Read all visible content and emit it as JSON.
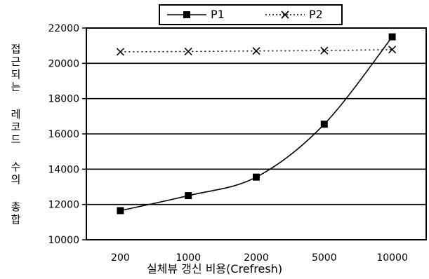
{
  "chart_data": {
    "type": "line",
    "categories": [
      "200",
      "1000",
      "2000",
      "5000",
      "10000"
    ],
    "series": [
      {
        "name": "P1",
        "values": [
          11650,
          12500,
          13550,
          16550,
          21500
        ],
        "marker": "square",
        "line": "solid",
        "color": "#000000"
      },
      {
        "name": "P2",
        "values": [
          20650,
          20670,
          20700,
          20720,
          20780
        ],
        "marker": "x",
        "line": "dotted",
        "color": "#000000"
      }
    ],
    "ylim": [
      10000,
      22000
    ],
    "yticks": [
      "10000",
      "12000",
      "14000",
      "16000",
      "18000",
      "20000",
      "22000"
    ],
    "xlabel": "실체뷰 갱신 비용(Crefresh)",
    "ylabel": "접근되는 레코드 수의 총합",
    "grid": "horizontal",
    "legend_position": "top"
  }
}
